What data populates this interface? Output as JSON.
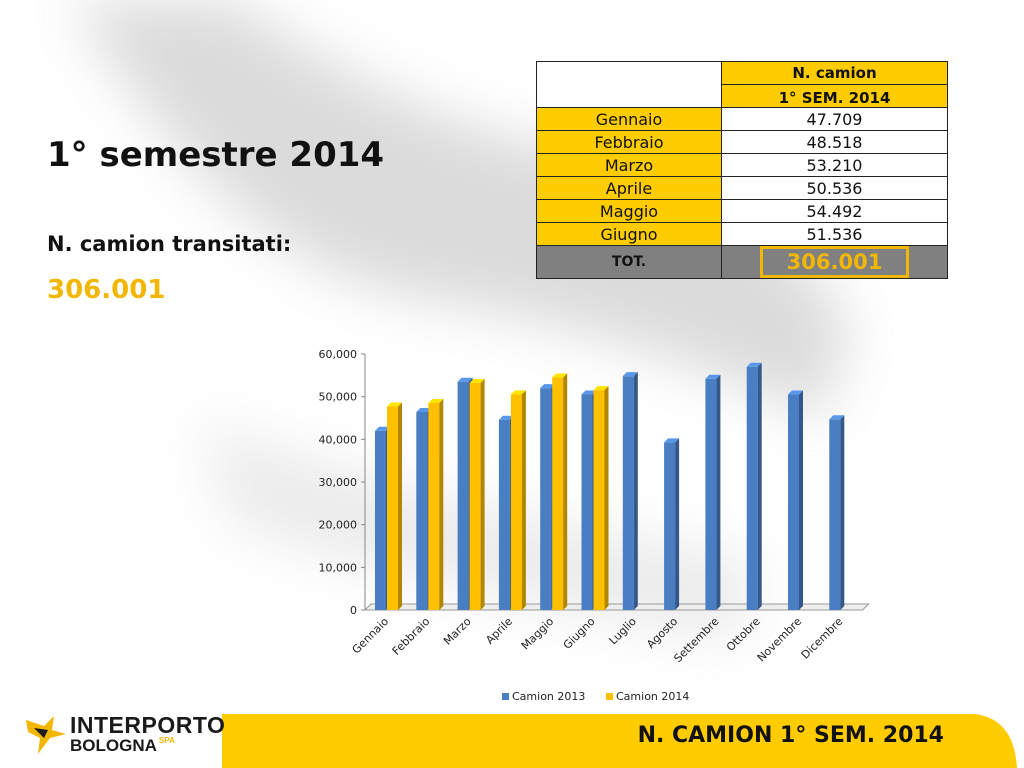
{
  "slide": {
    "title": "1° semestre 2014",
    "subtitle": "N. camion transitati:",
    "total": "306.001",
    "footer_title": "N. CAMION 1° SEM. 2014",
    "logo_line1": "INTERPORTO",
    "logo_line2": "BOLOGNA",
    "logo_spa": "SPA"
  },
  "table": {
    "header": "N. camion",
    "subheader": "1° SEM. 2014",
    "rows": [
      {
        "month": "Gennaio",
        "value": "47.709"
      },
      {
        "month": "Febbraio",
        "value": "48.518"
      },
      {
        "month": "Marzo",
        "value": "53.210"
      },
      {
        "month": "Aprile",
        "value": "50.536"
      },
      {
        "month": "Maggio",
        "value": "54.492"
      },
      {
        "month": "Giugno",
        "value": "51.536"
      }
    ],
    "total_label": "TOT.",
    "total_value": "306.001"
  },
  "colors": {
    "accent": "#ffcc00",
    "accent_text": "#f2b705",
    "series_2013": "#4a7ec3",
    "series_2014": "#ffc000",
    "total_row": "#808080"
  },
  "chart_data": {
    "type": "bar",
    "categories": [
      "Gennaio",
      "Febbraio",
      "Marzo",
      "Aprile",
      "Maggio",
      "Giugno",
      "Luglio",
      "Agosto",
      "Settembre",
      "Ottobre",
      "Novembre",
      "Dicembre"
    ],
    "series": [
      {
        "name": "Camion 2013",
        "values": [
          42000,
          46400,
          53500,
          44600,
          52000,
          50500,
          54800,
          39300,
          54200,
          57000,
          50500,
          44700
        ]
      },
      {
        "name": "Camion 2014",
        "values": [
          47709,
          48518,
          53210,
          50536,
          54492,
          51536,
          null,
          null,
          null,
          null,
          null,
          null
        ]
      }
    ],
    "ylim": [
      0,
      60000
    ],
    "yticks": [
      "0",
      "10,000",
      "20,000",
      "30,000",
      "40,000",
      "50,000",
      "60,000"
    ],
    "grid": false,
    "legend": "bottom"
  }
}
